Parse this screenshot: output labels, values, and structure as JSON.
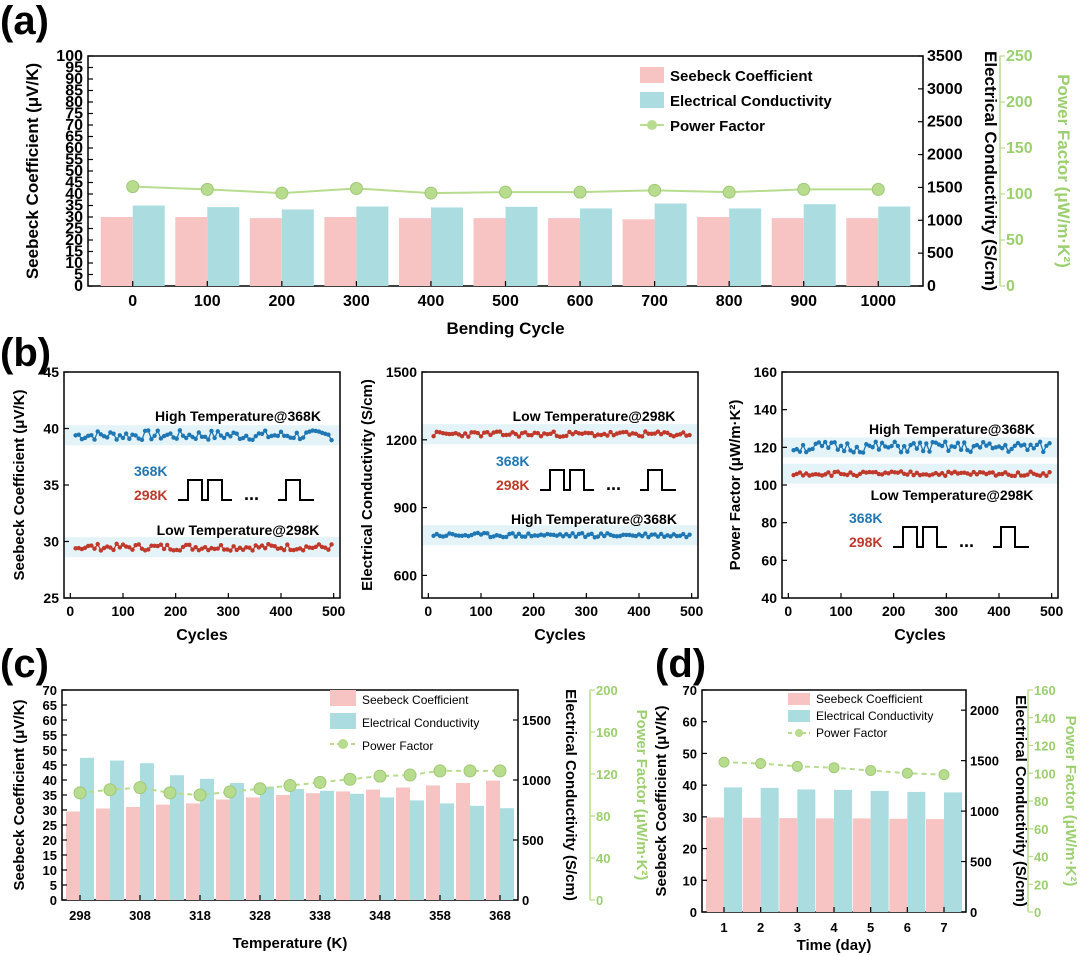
{
  "colors": {
    "seebeck": "#f8c3c3",
    "conductivity": "#abdde0",
    "power_factor": "#b8dc8e",
    "pf_text": "#9ccf6f",
    "high_temp": "#1f77b4",
    "low_temp": "#c0392b",
    "band": "#e3f3f8"
  },
  "panel_labels": {
    "a": "(a)",
    "b": "(b)",
    "c": "(c)",
    "d": "(d)"
  },
  "chart_data": [
    {
      "id": "a",
      "type": "bar",
      "title": "",
      "categories": [
        "0",
        "100",
        "200",
        "300",
        "400",
        "500",
        "600",
        "700",
        "800",
        "900",
        "1000"
      ],
      "series": [
        {
          "name": "Seebeck Coefficient",
          "axis": "left",
          "values": [
            30,
            30,
            29.5,
            30,
            29.5,
            29.5,
            29.5,
            29,
            30,
            29.5,
            29.5
          ]
        },
        {
          "name": "Electrical Conductivity",
          "axis": "right1",
          "values": [
            1225,
            1200,
            1165,
            1210,
            1195,
            1205,
            1180,
            1255,
            1180,
            1245,
            1210
          ]
        },
        {
          "name": "Power Factor",
          "axis": "right2",
          "values": [
            108,
            105,
            101,
            106,
            101,
            102,
            102,
            104,
            102,
            105,
            105
          ]
        }
      ],
      "xlabel": "Bending Cycle",
      "ylabel": "Seebeck Coefficient (μV/K)",
      "y2label": "Electrical Conductivity (S/cm)",
      "y3label": "Power Factor (μW/m·K²)",
      "ylim": [
        0,
        100
      ],
      "y2lim": [
        0,
        3500
      ],
      "y3lim": [
        0,
        250
      ],
      "yticks": [
        "0",
        "5",
        "10",
        "15",
        "20",
        "25",
        "30",
        "35",
        "40",
        "45",
        "50",
        "55",
        "60",
        "65",
        "70",
        "75",
        "80",
        "85",
        "90",
        "95",
        "100"
      ],
      "y2ticks": [
        "0",
        "500",
        "1000",
        "1500",
        "2000",
        "2500",
        "3000",
        "3500"
      ],
      "y3ticks": [
        "0",
        "50",
        "100",
        "150",
        "200",
        "250"
      ],
      "legend": [
        "Seebeck Coefficient",
        "Electrical Conductivity",
        "Power Factor"
      ]
    },
    {
      "id": "b1",
      "type": "line",
      "xlabel": "Cycles",
      "ylabel": "Seebeck Coefficient (μV/K)",
      "xlim": [
        0,
        500
      ],
      "ylim": [
        25,
        45
      ],
      "xticks": [
        "0",
        "100",
        "200",
        "300",
        "400",
        "500"
      ],
      "yticks": [
        "25",
        "30",
        "35",
        "40",
        "45"
      ],
      "series": [
        {
          "name": "High Temperature@368K",
          "mean": 39.4,
          "amp": 0.45
        },
        {
          "name": "Low Temperature@298K",
          "mean": 29.5,
          "amp": 0.3
        }
      ],
      "pulse_high": "368K",
      "pulse_low": "298K",
      "ellipsis": "..."
    },
    {
      "id": "b2",
      "type": "line",
      "xlabel": "Cycles",
      "ylabel": "Electrical Conductivity (S/cm)",
      "xlim": [
        0,
        500
      ],
      "ylim": [
        500,
        1500
      ],
      "xticks": [
        "0",
        "100",
        "200",
        "300",
        "400",
        "500"
      ],
      "yticks": [
        "600",
        "900",
        "1200",
        "1500"
      ],
      "series": [
        {
          "name": "Low Temperature@298K",
          "mean": 1225,
          "amp": 12
        },
        {
          "name": "High Temperature@368K",
          "mean": 778,
          "amp": 10
        }
      ],
      "pulse_high": "368K",
      "pulse_low": "298K",
      "ellipsis": "..."
    },
    {
      "id": "b3",
      "type": "line",
      "xlabel": "Cycles",
      "ylabel": "Power Factor (μW/m·K²)",
      "xlim": [
        0,
        500
      ],
      "ylim": [
        40,
        160
      ],
      "xticks": [
        "0",
        "100",
        "200",
        "300",
        "400",
        "500"
      ],
      "yticks": [
        "40",
        "60",
        "80",
        "100",
        "120",
        "140",
        "160"
      ],
      "series": [
        {
          "name": "High Temperature@368K",
          "mean": 120,
          "amp": 3
        },
        {
          "name": "Low Temperature@298K",
          "mean": 106,
          "amp": 1.2
        }
      ],
      "pulse_high": "368K",
      "pulse_low": "298K",
      "ellipsis": "..."
    },
    {
      "id": "c",
      "type": "bar",
      "categories": [
        "298",
        "303",
        "308",
        "313",
        "318",
        "323",
        "328",
        "333",
        "338",
        "343",
        "348",
        "353",
        "358",
        "363",
        "368"
      ],
      "xticks": [
        "298",
        "308",
        "318",
        "328",
        "338",
        "348",
        "358",
        "368"
      ],
      "series": [
        {
          "name": "Seebeck Coefficient",
          "axis": "left",
          "values": [
            29.5,
            30.5,
            31,
            31.8,
            32.2,
            33.5,
            34.2,
            35,
            35.6,
            36.2,
            36.8,
            37.5,
            38.2,
            39,
            39.8
          ]
        },
        {
          "name": "Electrical Conductivity",
          "axis": "right1",
          "values": [
            1185,
            1162,
            1140,
            1040,
            1010,
            975,
            945,
            925,
            910,
            885,
            855,
            830,
            805,
            785,
            765
          ]
        },
        {
          "name": "Power Factor",
          "axis": "right2",
          "values": [
            102,
            105,
            107,
            102,
            100,
            103,
            106,
            109,
            112,
            115,
            118,
            119,
            123,
            123,
            123
          ]
        }
      ],
      "xlabel": "Temperature (K)",
      "ylabel": "Seebeck Coefficient (μV/K)",
      "y2label": "Electrical Conductivity (S/cm)",
      "y3label": "Power Factor (μW/m·K²)",
      "ylim": [
        0,
        70
      ],
      "y2lim": [
        0,
        1750
      ],
      "y3lim": [
        0,
        200
      ],
      "yticks": [
        "0",
        "5",
        "10",
        "15",
        "20",
        "25",
        "30",
        "35",
        "40",
        "45",
        "50",
        "55",
        "60",
        "65",
        "70"
      ],
      "y2ticks": [
        "0",
        "500",
        "1000",
        "1500"
      ],
      "y3ticks": [
        "0",
        "40",
        "80",
        "120",
        "160",
        "200"
      ],
      "legend": [
        "Seebeck Coefficient",
        "Electrical Conductivity",
        "Power Factor"
      ]
    },
    {
      "id": "d",
      "type": "bar",
      "categories": [
        "1",
        "2",
        "3",
        "4",
        "5",
        "6",
        "7"
      ],
      "series": [
        {
          "name": "Seebeck Coefficient",
          "axis": "left",
          "values": [
            29.8,
            29.7,
            29.6,
            29.5,
            29.5,
            29.4,
            29.3
          ]
        },
        {
          "name": "Electrical Conductivity",
          "axis": "right1",
          "values": [
            1235,
            1230,
            1215,
            1210,
            1200,
            1190,
            1185
          ]
        },
        {
          "name": "Power Factor",
          "axis": "right2",
          "values": [
            108,
            107,
            105,
            104,
            102,
            100,
            99
          ]
        }
      ],
      "xlabel": "Time (day)",
      "ylabel": "Seebeck Coefficient (μV/K)",
      "y2label": "Electrical Conductivity (S/cm)",
      "y3label": "Power Factor (μW/m·K²)",
      "ylim": [
        0,
        70
      ],
      "y2lim": [
        0,
        2200
      ],
      "y3lim": [
        0,
        160
      ],
      "yticks": [
        "0",
        "10",
        "20",
        "30",
        "40",
        "50",
        "60",
        "70"
      ],
      "y2ticks": [
        "0",
        "500",
        "1000",
        "1500",
        "2000"
      ],
      "y3ticks": [
        "0",
        "20",
        "40",
        "60",
        "80",
        "100",
        "120",
        "140",
        "160"
      ],
      "legend": [
        "Seebeck Coefficient",
        "Electrical Conductivity",
        "Power Factor"
      ]
    }
  ]
}
